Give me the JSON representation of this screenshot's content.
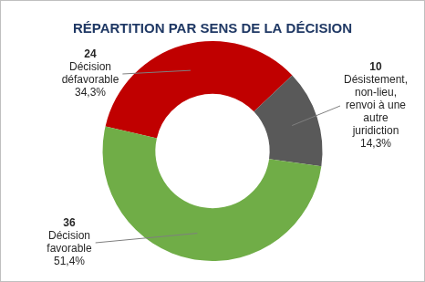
{
  "chart_data": {
    "type": "doughnut",
    "title": "RÉPARTITION PAR SENS DE LA DÉCISION",
    "categories": [
      "Décision défavorable",
      "Désistement, non-lieu, renvoi à une autre juridiction",
      "Décision favorable"
    ],
    "values": [
      24,
      10,
      36
    ],
    "percents": [
      34.3,
      14.3,
      51.4
    ],
    "percent_labels": [
      "34,3%",
      "14,3%",
      "51,4%"
    ],
    "colors": [
      "#c00000",
      "#595959",
      "#70ad47"
    ],
    "data_labels": true
  }
}
